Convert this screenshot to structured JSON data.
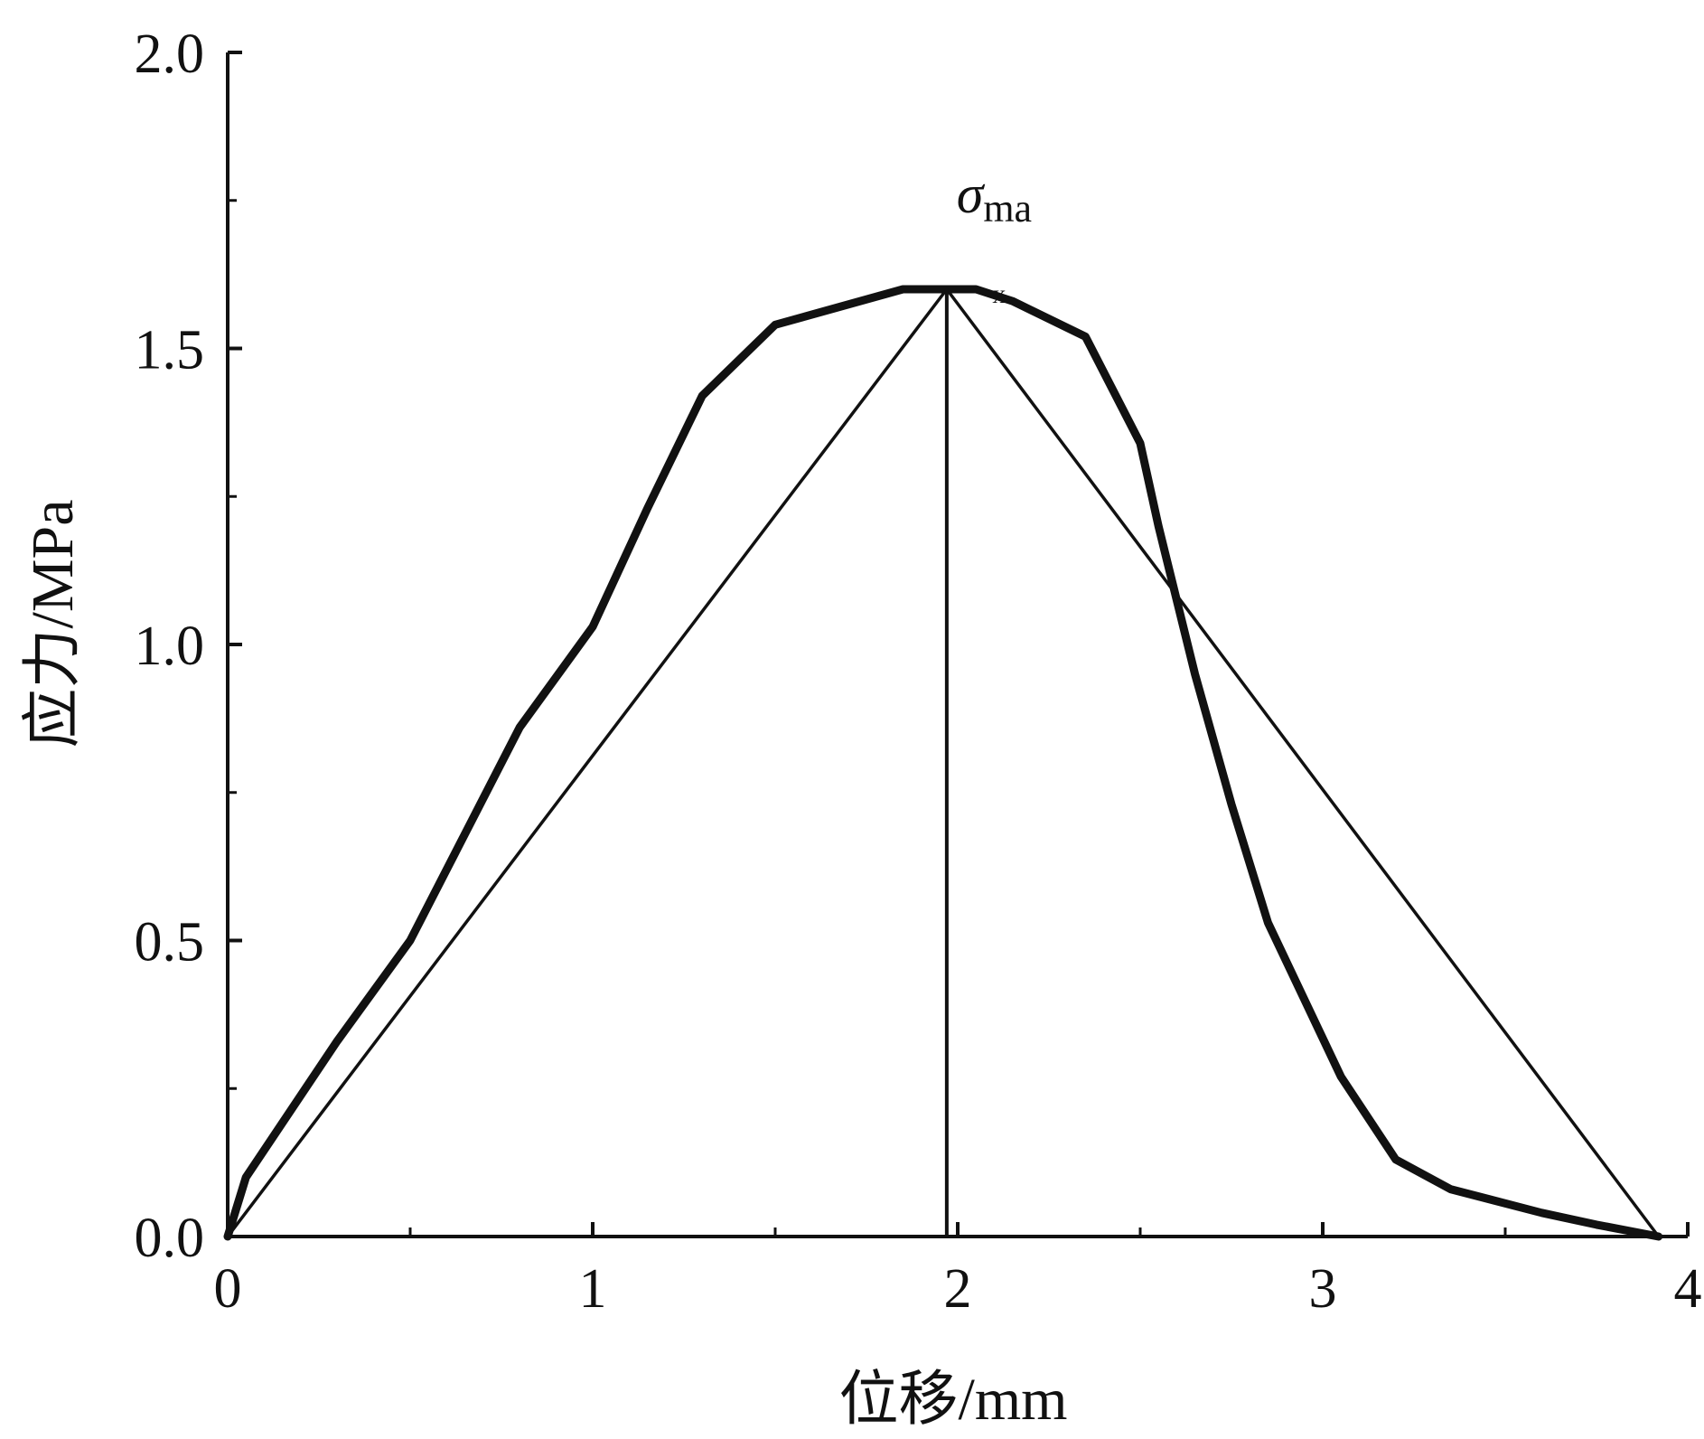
{
  "chart_data": {
    "type": "line",
    "title": "",
    "xlabel": "位移/mm",
    "ylabel": "应力/MPa",
    "xlim": [
      0,
      4
    ],
    "ylim": [
      0,
      2.0
    ],
    "x_ticks": [
      0,
      1,
      2,
      3,
      4
    ],
    "x_tick_labels": [
      "0",
      "1",
      "2",
      "3",
      "4"
    ],
    "y_ticks": [
      0.0,
      0.5,
      1.0,
      1.5,
      2.0
    ],
    "y_tick_labels": [
      "0.0",
      "0.5",
      "1.0",
      "1.5",
      "2.0"
    ],
    "x_minor_ticks": [
      0.5,
      1.5,
      2.5,
      3.5
    ],
    "y_minor_ticks": [
      0.25,
      0.75,
      1.25,
      1.75
    ],
    "grid": false,
    "legend": "none",
    "series": [
      {
        "style": "thick",
        "x": [
          0,
          0.05,
          0.3,
          0.5,
          0.8,
          1.0,
          1.15,
          1.3,
          1.5,
          1.85,
          2.05,
          2.15,
          2.35,
          2.5,
          2.55,
          2.65,
          2.75,
          2.85,
          2.95,
          3.05,
          3.2,
          3.35,
          3.6,
          3.75,
          3.92
        ],
        "y": [
          0.0,
          0.1,
          0.33,
          0.5,
          0.86,
          1.03,
          1.23,
          1.42,
          1.54,
          1.6,
          1.6,
          1.58,
          1.52,
          1.34,
          1.2,
          0.95,
          0.73,
          0.53,
          0.4,
          0.27,
          0.13,
          0.08,
          0.04,
          0.02,
          0.0
        ]
      },
      {
        "style": "thin",
        "x": [
          0,
          1.97,
          3.92
        ],
        "y": [
          0.0,
          1.6,
          0.0
        ]
      }
    ],
    "annotations": [
      {
        "type": "vertical_line",
        "x": 1.97,
        "y_from": 0.0,
        "y_to": 1.6
      },
      {
        "type": "label",
        "symbol": "σ",
        "subscript": "ma",
        "trailing": "x",
        "x": 2.1,
        "y": 1.73
      }
    ]
  }
}
